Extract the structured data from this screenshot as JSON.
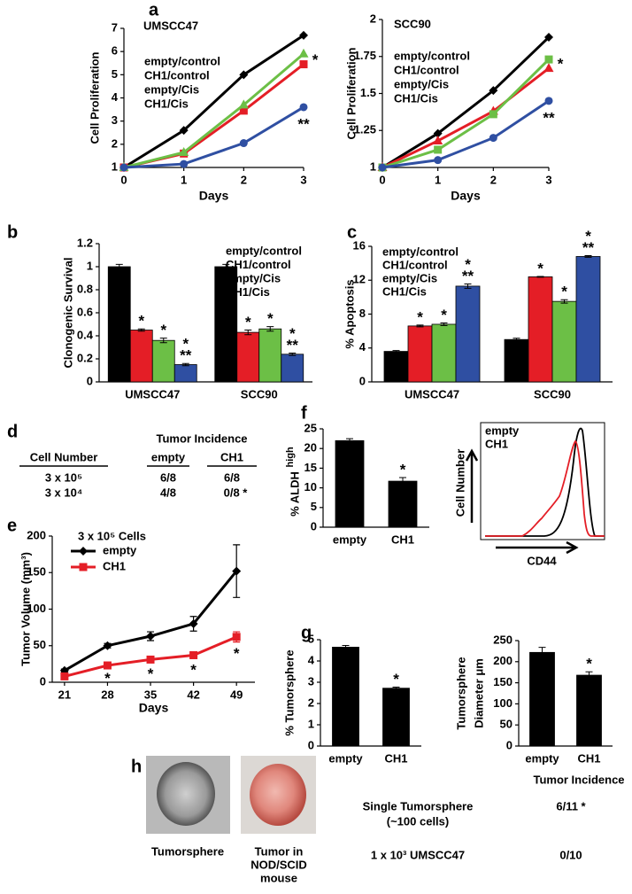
{
  "panel_labels": [
    "a",
    "b",
    "c",
    "d",
    "e",
    "f",
    "g",
    "h"
  ],
  "chart_data": [
    {
      "type": "line",
      "title": "UMSCC47",
      "xlabel": "Days",
      "ylabel": "Cell Proliferation",
      "x": [
        0,
        1,
        2,
        3
      ],
      "xlim": [
        0,
        3
      ],
      "xticks": [
        0,
        1,
        2,
        3
      ],
      "ylim": [
        1,
        7
      ],
      "yticks": [
        1,
        2,
        3,
        4,
        5,
        6,
        7
      ],
      "series": [
        {
          "name": "empty/control",
          "color": "#000000",
          "marker": "diamond",
          "values": [
            1,
            2.6,
            5,
            6.7
          ]
        },
        {
          "name": "CH1/control",
          "color": "#e41e26",
          "marker": "square",
          "values": [
            1,
            1.6,
            3.45,
            5.45
          ],
          "annotation": "*"
        },
        {
          "name": "empty/Cis",
          "color": "#6cbf46",
          "marker": "triangle",
          "values": [
            1,
            1.65,
            3.7,
            5.9
          ]
        },
        {
          "name": "CH1/Cis",
          "color": "#2f4fa2",
          "marker": "circle",
          "values": [
            1,
            1.15,
            2.05,
            3.6
          ],
          "annotation": "**"
        }
      ]
    },
    {
      "type": "line",
      "title": "SCC90",
      "xlabel": "Days",
      "ylabel": "Cell Proliferation",
      "x": [
        0,
        1,
        2,
        3
      ],
      "xlim": [
        0,
        3
      ],
      "xticks": [
        0,
        1,
        2,
        3
      ],
      "ylim": [
        1,
        2
      ],
      "yticks": [
        1,
        1.25,
        1.5,
        1.75,
        2
      ],
      "series": [
        {
          "name": "empty/control",
          "color": "#000000",
          "marker": "diamond",
          "values": [
            1,
            1.23,
            1.52,
            1.88
          ]
        },
        {
          "name": "CH1/control",
          "color": "#e41e26",
          "marker": "triangle",
          "values": [
            1,
            1.18,
            1.38,
            1.67
          ],
          "annotation": "*"
        },
        {
          "name": "empty/Cis",
          "color": "#6cbf46",
          "marker": "square",
          "values": [
            1,
            1.12,
            1.36,
            1.73
          ]
        },
        {
          "name": "CH1/Cis",
          "color": "#2f4fa2",
          "marker": "circle",
          "values": [
            1,
            1.05,
            1.2,
            1.45
          ],
          "annotation": "**"
        }
      ]
    },
    {
      "type": "bar",
      "ylabel": "Clonogenic Survival",
      "categories": [
        "UMSCC47",
        "SCC90"
      ],
      "ylim": [
        0,
        1.2
      ],
      "yticks": [
        0,
        0.2,
        0.4,
        0.6,
        0.8,
        1,
        1.2
      ],
      "series": [
        {
          "name": "empty/control",
          "color": "#000000",
          "values": [
            1,
            1
          ],
          "errors": [
            0.02,
            0.02
          ]
        },
        {
          "name": "CH1/control",
          "color": "#e41e26",
          "values": [
            0.45,
            0.43
          ],
          "errors": [
            0.01,
            0.02
          ],
          "annotations": [
            [
              "*"
            ],
            [
              "*"
            ]
          ]
        },
        {
          "name": "empty/Cis",
          "color": "#6cbf46",
          "values": [
            0.36,
            0.46
          ],
          "errors": [
            0.02,
            0.02
          ],
          "annotations": [
            [
              "*"
            ],
            [
              "*"
            ]
          ]
        },
        {
          "name": "CH1/Cis",
          "color": "#2f4fa2",
          "values": [
            0.15,
            0.24
          ],
          "errors": [
            0.01,
            0.01
          ],
          "annotations": [
            [
              "*",
              "**"
            ],
            [
              "*",
              "**"
            ]
          ]
        }
      ]
    },
    {
      "type": "bar",
      "ylabel": "% Apoptosis",
      "categories": [
        "UMSCC47",
        "SCC90"
      ],
      "ylim": [
        0,
        16
      ],
      "yticks": [
        0,
        4,
        8,
        12,
        16
      ],
      "series": [
        {
          "name": "empty/control",
          "color": "#000000",
          "values": [
            3.6,
            5
          ],
          "errors": [
            0.1,
            0.15
          ]
        },
        {
          "name": "CH1/control",
          "color": "#e41e26",
          "values": [
            6.6,
            12.4
          ],
          "errors": [
            0.1,
            0.05
          ],
          "annotations": [
            [
              "*"
            ],
            [
              "*"
            ]
          ]
        },
        {
          "name": "empty/Cis",
          "color": "#6cbf46",
          "values": [
            6.8,
            9.5
          ],
          "errors": [
            0.15,
            0.2
          ],
          "annotations": [
            [
              "*"
            ],
            [
              "*"
            ]
          ]
        },
        {
          "name": "CH1/Cis",
          "color": "#2f4fa2",
          "values": [
            11.3,
            14.8
          ],
          "errors": [
            0.25,
            0.1
          ],
          "annotations": [
            [
              "*",
              "**"
            ],
            [
              "*",
              "**"
            ]
          ]
        }
      ]
    },
    {
      "type": "line",
      "subtitle": "3 x 10⁵ Cells",
      "xlabel": "Days",
      "ylabel": "Tumor Volume (mm³)",
      "x": [
        21,
        28,
        35,
        42,
        49
      ],
      "xlim": [
        19,
        52
      ],
      "xticks": [
        21,
        28,
        35,
        42,
        49
      ],
      "ylim": [
        0,
        200
      ],
      "yticks": [
        0,
        50,
        100,
        150,
        200
      ],
      "series": [
        {
          "name": "empty",
          "color": "#000000",
          "marker": "diamond",
          "values": [
            16,
            50,
            63,
            80,
            152
          ],
          "errors": [
            2,
            3,
            6,
            10,
            36
          ]
        },
        {
          "name": "CH1",
          "color": "#e41e26",
          "marker": "square",
          "values": [
            8,
            23,
            31,
            37,
            62
          ],
          "errors": [
            1,
            2,
            4,
            4,
            7
          ],
          "annotations": [
            null,
            "*",
            "*",
            "*",
            "*"
          ]
        }
      ]
    },
    {
      "type": "bar",
      "ylabel": "% ALDH",
      "ylabel_superscript": "high",
      "categories": [
        "empty",
        "CH1"
      ],
      "values": [
        22,
        11.7
      ],
      "errors": [
        0.5,
        0.9
      ],
      "annotations": [
        null,
        [
          "*"
        ]
      ],
      "color": "#000000",
      "ylim": [
        0,
        25
      ],
      "yticks": [
        0,
        5,
        10,
        15,
        20,
        25
      ]
    },
    {
      "type": "flow",
      "xlabel": "CD44",
      "ylabel": "Cell Number",
      "series": [
        {
          "name": "empty",
          "color": "#000000"
        },
        {
          "name": "CH1",
          "color": "#e41e26"
        }
      ]
    },
    {
      "type": "bar",
      "ylabel": "% Tumorsphere",
      "categories": [
        "empty",
        "CH1"
      ],
      "values": [
        4.65,
        2.72
      ],
      "errors": [
        0.08,
        0.05
      ],
      "annotations": [
        null,
        [
          "*"
        ]
      ],
      "color": "#000000",
      "ylim": [
        0,
        5
      ],
      "yticks": [
        0,
        1,
        2,
        3,
        4,
        5
      ]
    },
    {
      "type": "bar",
      "ylabel": [
        "Tumorsphere",
        "Diameter μm"
      ],
      "categories": [
        "empty",
        "CH1"
      ],
      "values": [
        222,
        168
      ],
      "errors": [
        12,
        8
      ],
      "annotations": [
        null,
        [
          "*"
        ]
      ],
      "color": "#000000",
      "ylim": [
        0,
        250
      ],
      "yticks": [
        0,
        50,
        100,
        150,
        200,
        250
      ]
    }
  ],
  "table_d": {
    "header": "Tumor Incidence",
    "columns": [
      "Cell Number",
      "empty",
      "CH1"
    ],
    "rows": [
      [
        "3 x 10⁵",
        "6/8",
        "6/8"
      ],
      [
        "3 x 10⁴",
        "4/8",
        "0/8 *"
      ]
    ]
  },
  "panel_h": {
    "captions": [
      [
        "Tumorsphere"
      ],
      [
        "Tumor in",
        "NOD/SCID",
        "mouse"
      ]
    ],
    "table": {
      "header": "Tumor Incidence",
      "rows": [
        [
          [
            "Single Tumorsphere",
            "(~100 cells)"
          ],
          "6/11 *"
        ],
        [
          [
            "1 x 10³ UMSCC47"
          ],
          "0/10"
        ]
      ]
    }
  }
}
